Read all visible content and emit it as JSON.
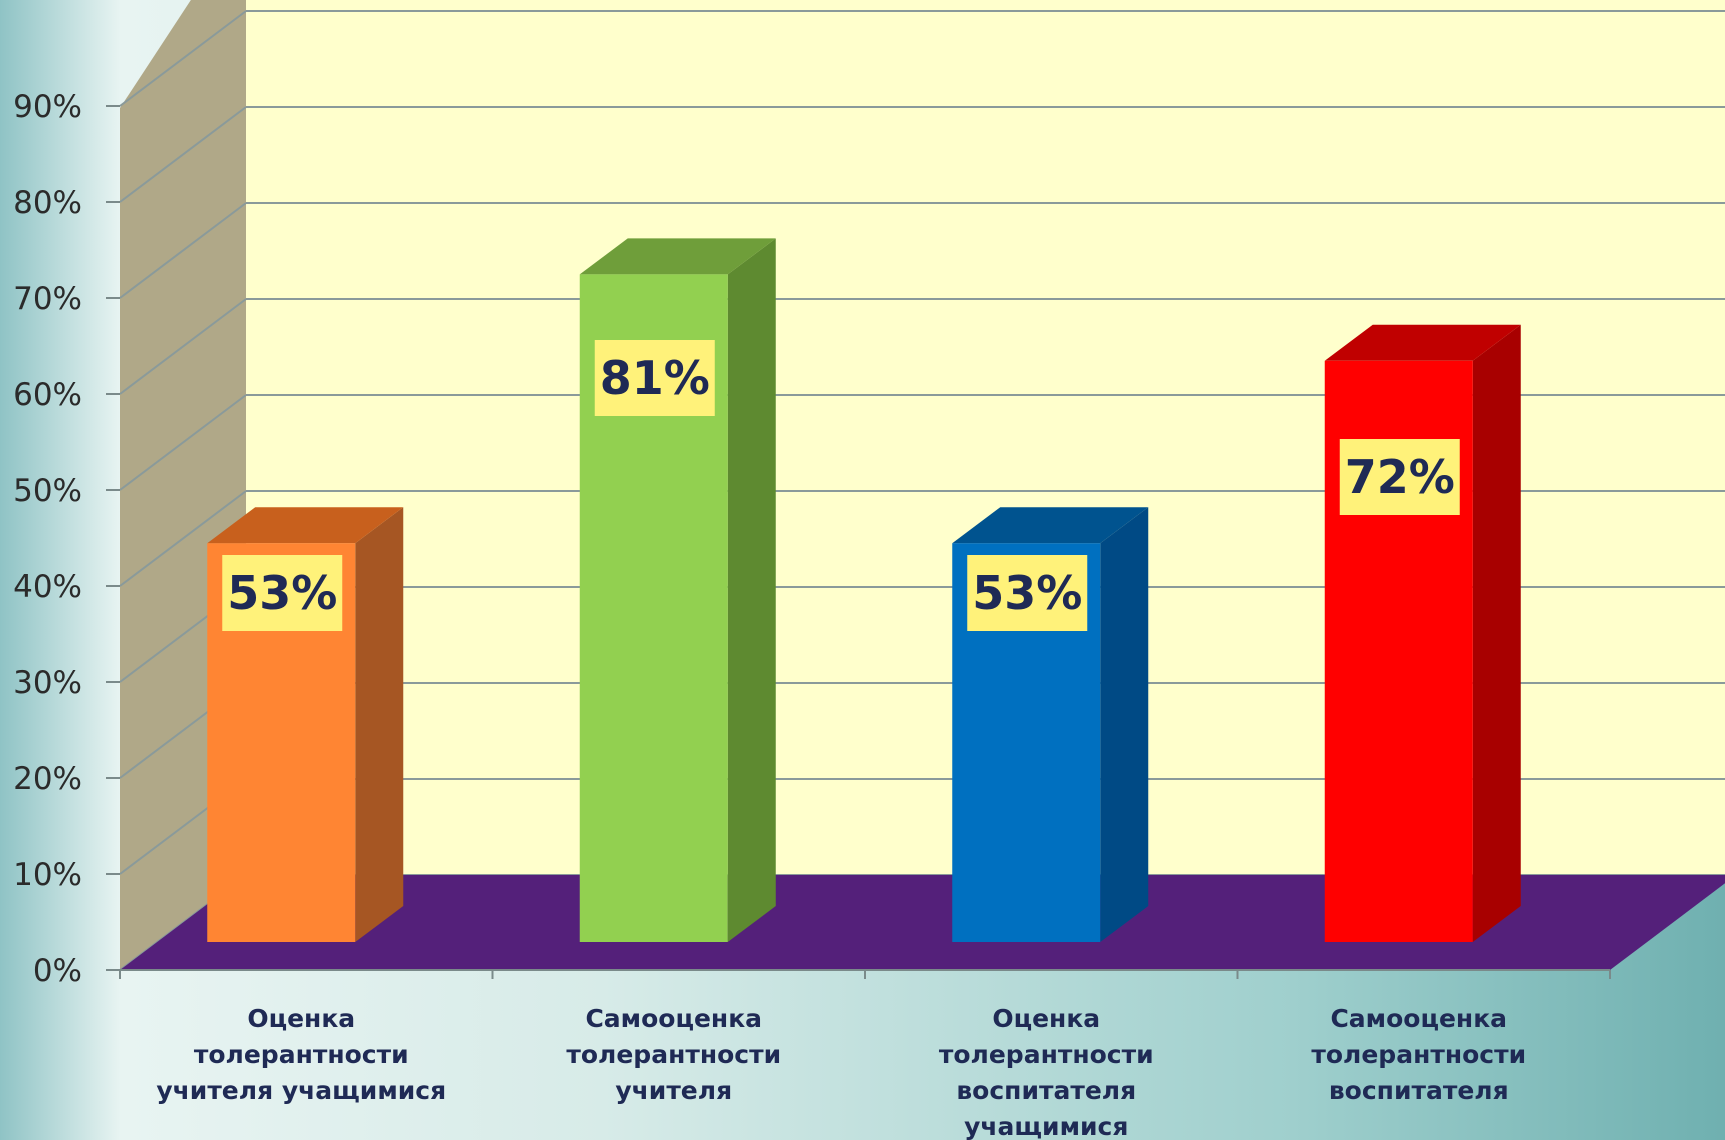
{
  "chart_data": {
    "type": "bar",
    "title": "",
    "xlabel": "",
    "ylabel": "",
    "ylim": [
      0,
      90
    ],
    "yticks": [
      "0%",
      "10%",
      "20%",
      "30%",
      "40%",
      "50%",
      "60%",
      "70%",
      "80%",
      "90%"
    ],
    "grid": true,
    "legend": "none",
    "categories": [
      [
        "Оценка",
        "толерантности",
        "учителя учащимися"
      ],
      [
        "Самооценка",
        "толерантности",
        "учителя"
      ],
      [
        "Оценка",
        "толерантности",
        "воспитателя",
        "учащимися"
      ],
      [
        "Самооценка",
        "толерантности",
        "воспитателя"
      ]
    ],
    "values": [
      53,
      81,
      53,
      72
    ],
    "data_labels": [
      "53%",
      "81%",
      "53%",
      "72%"
    ],
    "colors": {
      "bars": [
        "#ff8533",
        "#92d050",
        "#0070c0",
        "#ff0000"
      ],
      "bar_sides": [
        "#a65623",
        "#5e8a30",
        "#004a85",
        "#a80000"
      ],
      "bar_tops": [
        "#c8601d",
        "#6f9e3a",
        "#00538f",
        "#c00000"
      ],
      "back_wall": "#ffffcc",
      "side_wall": "#b0a888",
      "floor": "#54207a",
      "gridline": "#8a9a9a",
      "label_box": "#fff27a"
    }
  }
}
